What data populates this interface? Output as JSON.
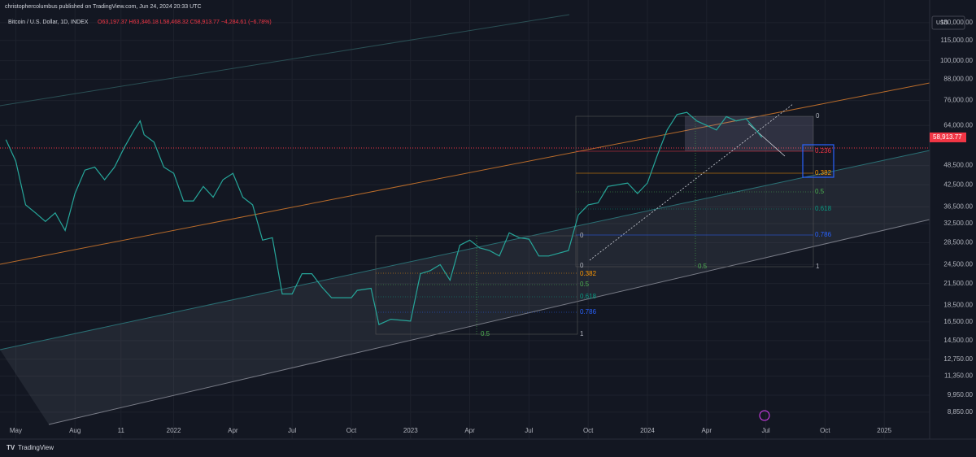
{
  "header": {
    "published": "christophercolumbus published on TradingView.com, Jun 24, 2024 20:33 UTC",
    "symbol": "Bitcoin / U.S. Dollar, 1D, INDEX",
    "ohlc": "O63,197.37 H63,346.18 L58,468.32 C58,913.77 −4,284.61 (−6.78%)",
    "currency": "USD"
  },
  "footer": {
    "brand": "TradingView"
  },
  "annotations": {
    "right_fib": [
      "0",
      "0.236",
      "0.382",
      "0.5",
      "0.618",
      "0.786",
      "1",
      "0.5"
    ],
    "lower_fib": [
      "0",
      "0",
      "0.382",
      "0.5",
      "0.618",
      "0.786",
      "1",
      "0.5"
    ]
  },
  "chart_data": {
    "type": "line",
    "log_scale": true,
    "grid": true,
    "xlim": [
      3.2,
      50.3
    ],
    "ylim": [
      7350,
      152000
    ],
    "xticks": [
      {
        "value": 4,
        "label": "May"
      },
      {
        "value": 7,
        "label": "Aug"
      },
      {
        "value": 9.33,
        "label": "11"
      },
      {
        "value": 12,
        "label": "2022"
      },
      {
        "value": 15,
        "label": "Apr"
      },
      {
        "value": 18,
        "label": "Jul"
      },
      {
        "value": 21,
        "label": "Oct"
      },
      {
        "value": 24,
        "label": "2023"
      },
      {
        "value": 27,
        "label": "Apr"
      },
      {
        "value": 30,
        "label": "Jul"
      },
      {
        "value": 33,
        "label": "Oct"
      },
      {
        "value": 36,
        "label": "2024"
      },
      {
        "value": 39,
        "label": "Apr"
      },
      {
        "value": 42,
        "label": "Jul"
      },
      {
        "value": 45,
        "label": "Oct"
      },
      {
        "value": 48,
        "label": "2025"
      }
    ],
    "yticks": [
      {
        "value": 130000,
        "label": "130,000.00"
      },
      {
        "value": 115000,
        "label": "115,000.00"
      },
      {
        "value": 100000,
        "label": "100,000.00"
      },
      {
        "value": 88000,
        "label": "88,000.00"
      },
      {
        "value": 76000,
        "label": "76,000.00"
      },
      {
        "value": 64000,
        "label": "64,000.00"
      },
      {
        "value": 48500,
        "label": "48,500.00"
      },
      {
        "value": 42500,
        "label": "42,500.00"
      },
      {
        "value": 36500,
        "label": "36,500.00"
      },
      {
        "value": 32500,
        "label": "32,500.00"
      },
      {
        "value": 28500,
        "label": "28,500.00"
      },
      {
        "value": 24500,
        "label": "24,500.00"
      },
      {
        "value": 21500,
        "label": "21,500.00"
      },
      {
        "value": 18500,
        "label": "18,500.00"
      },
      {
        "value": 16500,
        "label": "16,500.00"
      },
      {
        "value": 14500,
        "label": "14,500.00"
      },
      {
        "value": 12750,
        "label": "12,750.00"
      },
      {
        "value": 11350,
        "label": "11,350.00"
      },
      {
        "value": 9950,
        "label": "9,950.00"
      },
      {
        "value": 8850,
        "label": "8,850.00"
      }
    ],
    "last_price": {
      "value": 58913.77,
      "label": "58,913.77"
    },
    "series": [
      {
        "color": "#26a69a",
        "x": [
          3.5,
          4.0,
          4.5,
          5.0,
          5.5,
          6.0,
          6.5,
          7.0,
          7.5,
          8.0,
          8.5,
          9.0,
          9.5,
          10.0,
          10.3,
          10.5,
          11.0,
          11.5,
          12.0,
          12.5,
          13.0,
          13.5,
          14.0,
          14.5,
          15.0,
          15.5,
          16.0,
          16.5,
          17.0,
          17.5,
          18.0,
          18.5,
          19.0,
          19.5,
          20.0,
          21.0,
          21.3,
          22.0,
          22.4,
          23.0,
          24.0,
          24.5,
          25.0,
          25.5,
          26.0,
          26.5,
          27.0,
          27.5,
          28.0,
          28.5,
          29.0,
          29.5,
          30.0,
          30.5,
          31.0,
          31.5,
          32.0,
          32.5,
          33.0,
          33.5,
          34.0,
          34.5,
          35.0,
          35.5,
          36.0,
          36.5,
          37.0,
          37.5,
          38.0,
          38.5,
          39.0,
          39.5,
          40.0,
          40.5,
          41.0,
          41.5,
          41.8
        ],
        "values": [
          58000,
          50000,
          37000,
          35000,
          33000,
          35000,
          31000,
          40000,
          47000,
          48000,
          44000,
          48000,
          55000,
          62000,
          66000,
          60000,
          57000,
          48000,
          46000,
          38000,
          38000,
          42000,
          39000,
          44000,
          46000,
          39000,
          37000,
          29000,
          29500,
          20000,
          20000,
          23000,
          23000,
          21000,
          19500,
          19500,
          20500,
          20800,
          16200,
          16800,
          16600,
          23000,
          23500,
          24500,
          22000,
          28000,
          29000,
          27500,
          27000,
          26000,
          30500,
          29500,
          29200,
          26000,
          26000,
          26500,
          27000,
          34500,
          37000,
          37500,
          42000,
          42500,
          43000,
          40000,
          43000,
          52000,
          62000,
          69000,
          70000,
          66000,
          64000,
          62000,
          68000,
          66000,
          67000,
          62000,
          58913.77
        ]
      }
    ]
  }
}
